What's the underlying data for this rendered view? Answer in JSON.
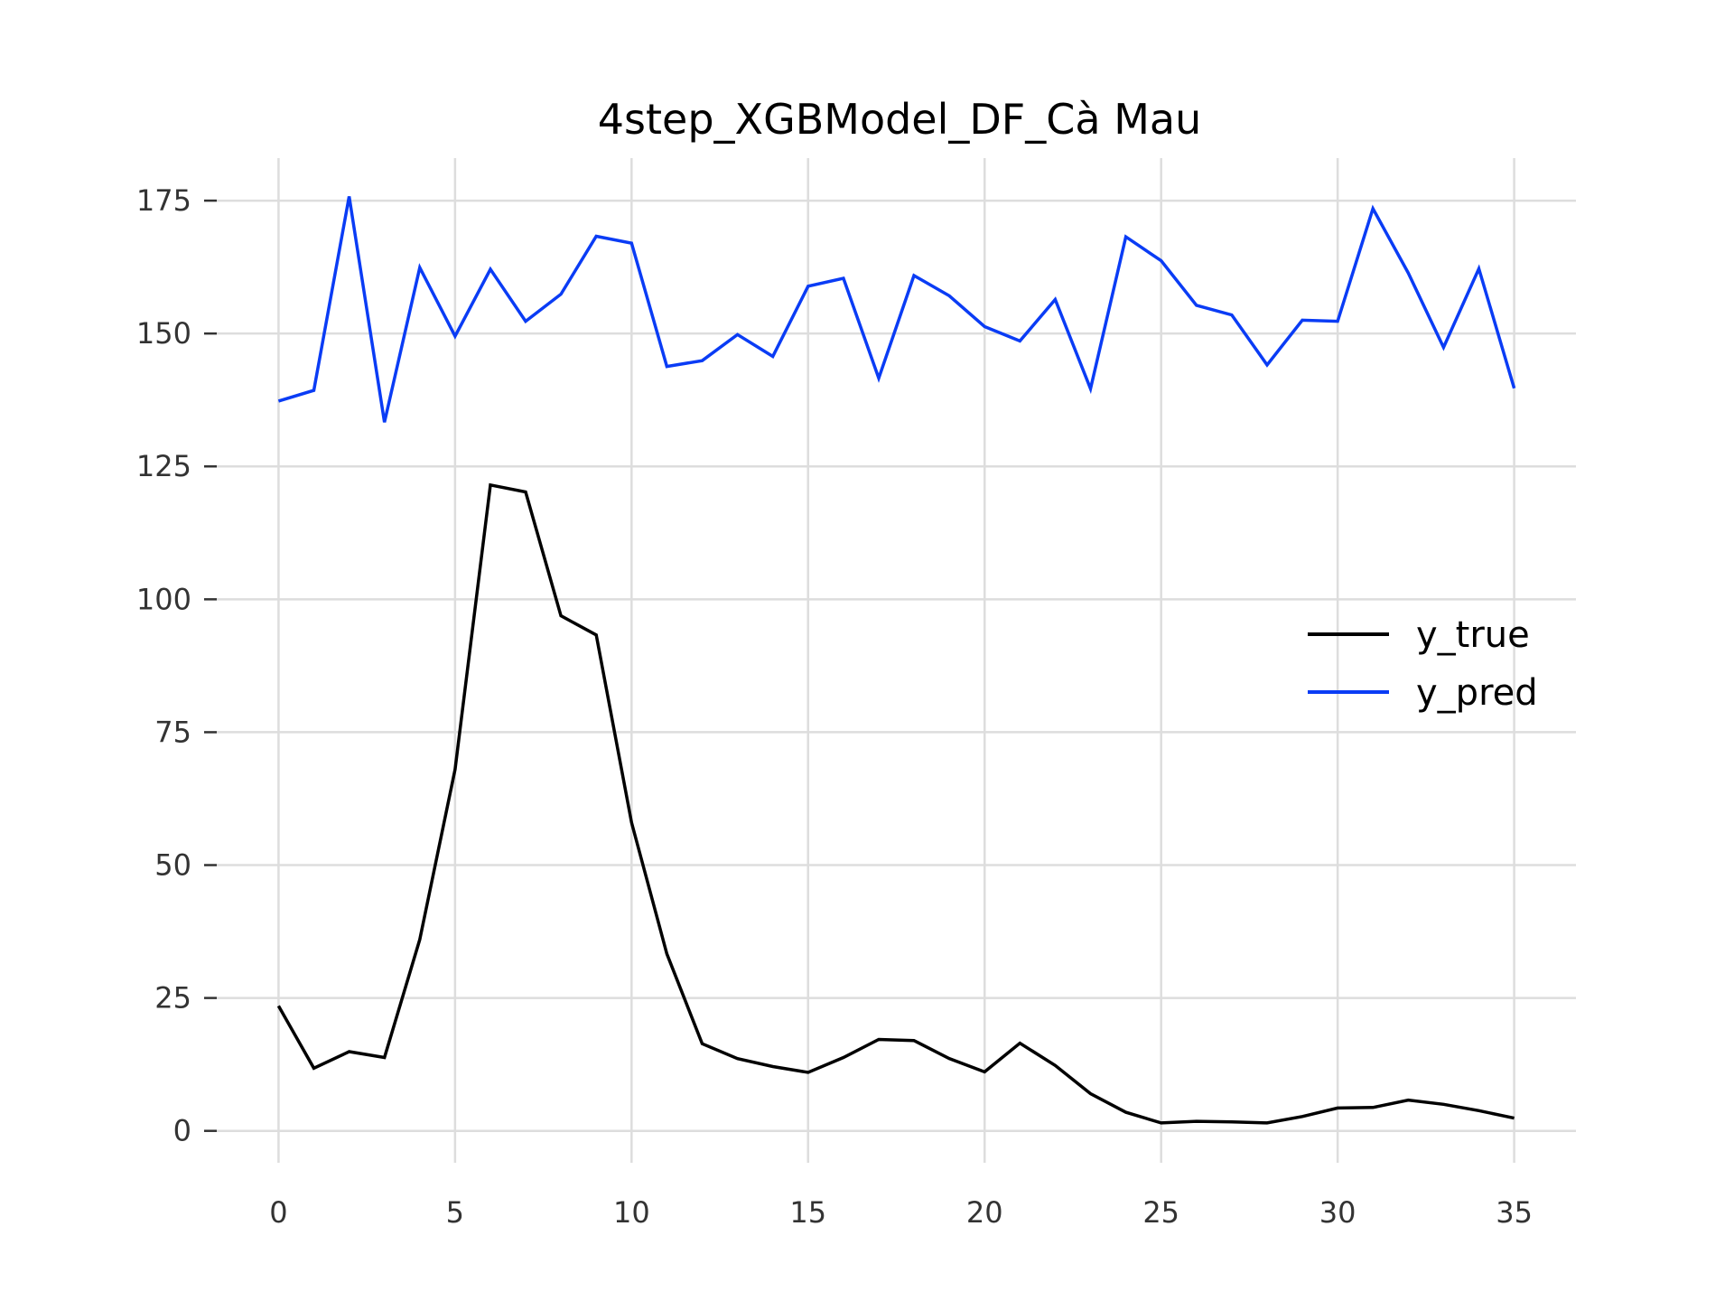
{
  "chart_data": {
    "type": "line",
    "title": "4step_XGBModel_DF_Cà Mau",
    "xlabel": "",
    "ylabel": "",
    "xlim": [
      -1.75,
      36.75
    ],
    "ylim": [
      -6,
      183
    ],
    "x_ticks": [
      0,
      5,
      10,
      15,
      20,
      25,
      30,
      35
    ],
    "y_ticks": [
      0,
      25,
      50,
      75,
      100,
      125,
      150,
      175
    ],
    "grid": true,
    "legend_position": "center-right",
    "x": [
      0,
      1,
      2,
      3,
      4,
      5,
      6,
      7,
      8,
      9,
      10,
      11,
      12,
      13,
      14,
      15,
      16,
      17,
      18,
      19,
      20,
      21,
      22,
      23,
      24,
      25,
      26,
      27,
      28,
      29,
      30,
      31,
      32,
      33,
      34,
      35
    ],
    "series": [
      {
        "name": "y_true",
        "color": "#000000",
        "values": [
          23.5,
          11.8,
          14.9,
          13.8,
          36,
          68,
          121.5,
          120.2,
          96.9,
          93.3,
          58,
          33.3,
          16.4,
          13.6,
          12.1,
          11,
          13.8,
          17.2,
          17,
          13.6,
          11.1,
          16.5,
          12.3,
          7,
          3.5,
          1.5,
          1.8,
          1.7,
          1.5,
          2.7,
          4.3,
          4.4,
          5.8,
          5,
          3.8,
          2.4
        ]
      },
      {
        "name": "y_pred",
        "color": "#0a3cf5",
        "values": [
          137.3,
          139.3,
          175.8,
          133.3,
          162.4,
          149.5,
          162.1,
          152.3,
          157.4,
          168.3,
          167,
          143.8,
          144.9,
          149.8,
          145.7,
          158.9,
          160.4,
          141.6,
          160.9,
          157.1,
          151.3,
          148.6,
          156.4,
          139.6,
          168.2,
          163.7,
          155.3,
          153.5,
          144.1,
          152.5,
          152.3,
          173.5,
          161.4,
          147.4,
          162.2,
          139.7
        ]
      }
    ]
  }
}
